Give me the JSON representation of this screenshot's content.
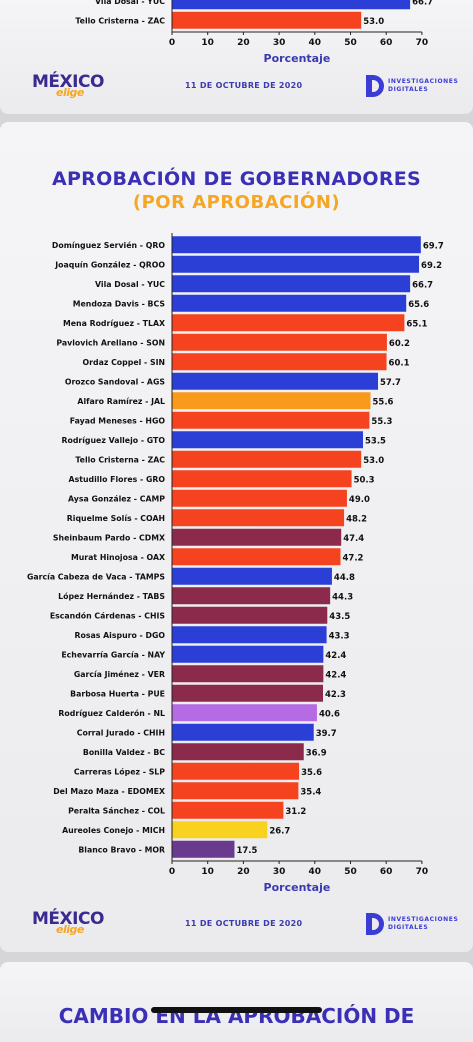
{
  "top_panel": {
    "categories": [
      "Vila Dosal - YUC",
      "Tello Cristerna - ZAC"
    ],
    "values": [
      66.7,
      53.0
    ],
    "labels": [
      "66.7",
      "53.0"
    ],
    "colors": [
      "#2b3fd6",
      "#f5421f"
    ],
    "x_ticks": [
      "0",
      "10",
      "20",
      "30",
      "40",
      "50",
      "60",
      "70"
    ],
    "xlabel": "Porcentaje",
    "footer": {
      "logo_main": "MÉXICO",
      "logo_sub": "elige",
      "date": "11 DE OCTUBRE DE 2020",
      "brand_line1": "INVESTIGACIONES",
      "brand_line2": "DIGITALES"
    }
  },
  "chart_data": {
    "type": "bar",
    "orientation": "horizontal",
    "title": "APROBACIÓN DE GOBERNADORES",
    "subtitle": "(POR APROBACIÓN)",
    "xlabel": "Porcentaje",
    "xlim": [
      0,
      70
    ],
    "x_ticks": [
      "0",
      "10",
      "20",
      "30",
      "40",
      "50",
      "60",
      "70"
    ],
    "grid": false,
    "categories": [
      "Domínguez Servién - QRO",
      "Joaquín González - QROO",
      "Vila Dosal - YUC",
      "Mendoza Davis - BCS",
      "Mena Rodríguez - TLAX",
      "Pavlovich Arellano - SON",
      "Ordaz Coppel - SIN",
      "Orozco Sandoval - AGS",
      "Alfaro Ramírez - JAL",
      "Fayad Meneses - HGO",
      "Rodríguez Vallejo - GTO",
      "Tello Cristerna - ZAC",
      "Astudillo Flores - GRO",
      "Aysa González - CAMP",
      "Riquelme Solís - COAH",
      "Sheinbaum Pardo - CDMX",
      "Murat Hinojosa - OAX",
      "García Cabeza de Vaca - TAMPS",
      "López Hernández - TABS",
      "Escandón Cárdenas - CHIS",
      "Rosas Aispuro - DGO",
      "Echevarría García - NAY",
      "García Jiménez - VER",
      "Barbosa Huerta - PUE",
      "Rodríguez Calderón - NL",
      "Corral Jurado - CHIH",
      "Bonilla Valdez - BC",
      "Carreras López - SLP",
      "Del Mazo Maza - EDOMEX",
      "Peralta Sánchez - COL",
      "Aureoles Conejo - MICH",
      "Blanco Bravo - MOR"
    ],
    "values": [
      69.7,
      69.2,
      66.7,
      65.6,
      65.1,
      60.2,
      60.1,
      57.7,
      55.6,
      55.3,
      53.5,
      53.0,
      50.3,
      49.0,
      48.2,
      47.4,
      47.2,
      44.8,
      44.3,
      43.5,
      43.3,
      42.4,
      42.4,
      42.3,
      40.6,
      39.7,
      36.9,
      35.6,
      35.4,
      31.2,
      26.7,
      17.5
    ],
    "labels": [
      "69.7",
      "69.2",
      "66.7",
      "65.6",
      "65.1",
      "60.2",
      "60.1",
      "57.7",
      "55.6",
      "55.3",
      "53.5",
      "53.0",
      "50.3",
      "49.0",
      "48.2",
      "47.4",
      "47.2",
      "44.8",
      "44.3",
      "43.5",
      "43.3",
      "42.4",
      "42.4",
      "42.3",
      "40.6",
      "39.7",
      "36.9",
      "35.6",
      "35.4",
      "31.2",
      "26.7",
      "17.5"
    ],
    "colors": [
      "#2b3fd6",
      "#2b3fd6",
      "#2b3fd6",
      "#2b3fd6",
      "#f5421f",
      "#f5421f",
      "#f5421f",
      "#2b3fd6",
      "#f99a1c",
      "#f5421f",
      "#2b3fd6",
      "#f5421f",
      "#f5421f",
      "#f5421f",
      "#f5421f",
      "#8b2a4b",
      "#f5421f",
      "#2b3fd6",
      "#8b2a4b",
      "#8b2a4b",
      "#2b3fd6",
      "#2b3fd6",
      "#8b2a4b",
      "#8b2a4b",
      "#b46be3",
      "#2b3fd6",
      "#8b2a4b",
      "#f5421f",
      "#f5421f",
      "#f5421f",
      "#f8d21e",
      "#6a3a8e"
    ]
  },
  "footer": {
    "logo_main": "MÉXICO",
    "logo_sub": "elige",
    "date": "11 DE OCTUBRE DE 2020",
    "brand_line1": "INVESTIGACIONES",
    "brand_line2": "DIGITALES"
  },
  "next_panel": {
    "title": "CAMBIO EN LA APROBACIÓN DE"
  }
}
